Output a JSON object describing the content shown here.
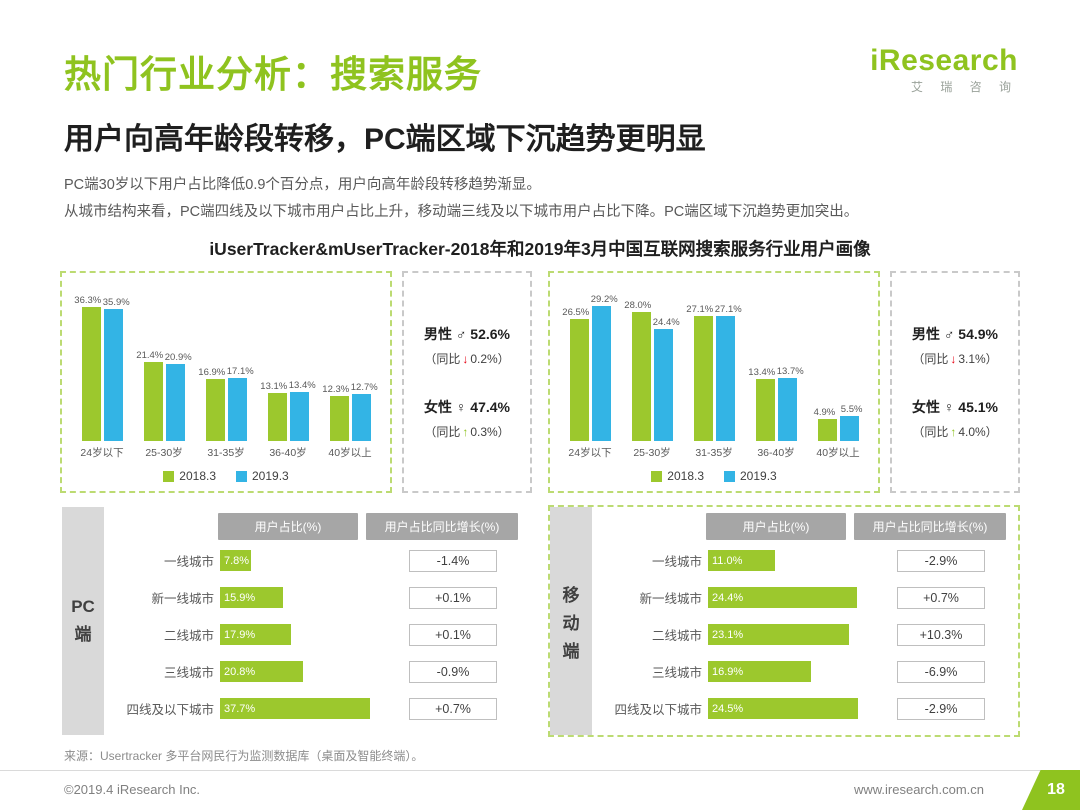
{
  "header": {
    "title": "热门行业分析：搜索服务",
    "subtitle": "用户向高年龄段转移，PC端区域下沉趋势更明显",
    "paragraph1": "PC端30岁以下用户占比降低0.9个百分点，用户向高年龄段转移趋势渐显。",
    "paragraph2": "从城市结构来看，PC端四线及以下城市用户占比上升，移动端三线及以下城市用户占比下降。PC端区域下沉趋势更加突出。",
    "logo_text": "iResearch",
    "logo_sub": "艾 瑞 咨 询"
  },
  "chart_title": "iUserTracker&mUserTracker-2018年和2019年3月中国互联网搜索服务行业用户画像",
  "colors": {
    "brand_green": "#8FC31F",
    "bar_green": "#9CC82D",
    "bar_blue": "#33B4E5",
    "down_red": "#E60012",
    "header_gray": "#A6A6A6",
    "side_label_gray": "#D9D9D9"
  },
  "chart_data": [
    {
      "type": "bar",
      "title": "PC端用户年龄结构",
      "categories": [
        "24岁以下",
        "25-30岁",
        "31-35岁",
        "36-40岁",
        "40岁以上"
      ],
      "series": [
        {
          "name": "2018.3",
          "color": "#9CC82D",
          "values": [
            36.3,
            21.4,
            16.9,
            13.1,
            12.3
          ]
        },
        {
          "name": "2019.3",
          "color": "#33B4E5",
          "values": [
            35.9,
            20.9,
            17.1,
            13.4,
            12.7
          ]
        }
      ],
      "unit": "%",
      "ylim": [
        0,
        40
      ],
      "grid": false,
      "legend_position": "bottom"
    },
    {
      "type": "bar",
      "title": "移动端用户年龄结构",
      "categories": [
        "24岁以下",
        "25-30岁",
        "31-35岁",
        "36-40岁",
        "40岁以上"
      ],
      "series": [
        {
          "name": "2018.3",
          "color": "#9CC82D",
          "values": [
            26.5,
            28.0,
            27.1,
            13.4,
            4.9
          ]
        },
        {
          "name": "2019.3",
          "color": "#33B4E5",
          "values": [
            29.2,
            24.4,
            27.1,
            13.7,
            5.5
          ]
        }
      ],
      "unit": "%",
      "ylim": [
        0,
        32
      ],
      "grid": false,
      "legend_position": "bottom"
    },
    {
      "type": "table",
      "title": "PC端城市结构",
      "columns": [
        "用户占比(%)",
        "用户占比同比增长(%)"
      ],
      "rows": [
        {
          "city": "一线城市",
          "share": 7.8,
          "share_text": "7.8%",
          "growth": "-1.4%"
        },
        {
          "city": "新一线城市",
          "share": 15.9,
          "share_text": "15.9%",
          "growth": "+0.1%"
        },
        {
          "city": "二线城市",
          "share": 17.9,
          "share_text": "17.9%",
          "growth": "+0.1%"
        },
        {
          "city": "三线城市",
          "share": 20.8,
          "share_text": "20.8%",
          "growth": "-0.9%"
        },
        {
          "city": "四线及以下城市",
          "share": 37.7,
          "share_text": "37.7%",
          "growth": "+0.7%"
        }
      ]
    },
    {
      "type": "table",
      "title": "移动端城市结构",
      "columns": [
        "用户占比(%)",
        "用户占比同比增长(%)"
      ],
      "rows": [
        {
          "city": "一线城市",
          "share": 11.0,
          "share_text": "11.0%",
          "growth": "-2.9%"
        },
        {
          "city": "新一线城市",
          "share": 24.4,
          "share_text": "24.4%",
          "growth": "+0.7%"
        },
        {
          "city": "二线城市",
          "share": 23.1,
          "share_text": "23.1%",
          "growth": "+10.3%"
        },
        {
          "city": "三线城市",
          "share": 16.9,
          "share_text": "16.9%",
          "growth": "-6.9%"
        },
        {
          "city": "四线及以下城市",
          "share": 24.5,
          "share_text": "24.5%",
          "growth": "-2.9%"
        }
      ]
    }
  ],
  "panels": [
    {
      "name": "PC端",
      "side_label_chars": [
        "PC",
        "端"
      ],
      "stats": {
        "male_label": "男性 ♂",
        "male_value": "52.6%",
        "male_yoy_pre": "（同比",
        "male_arrow": "↓",
        "male_yoy_post": "0.2%）",
        "male_dir": "down",
        "female_label": "女性 ♀",
        "female_value": "47.4%",
        "female_yoy_pre": "（同比",
        "female_arrow": "↑",
        "female_yoy_post": "0.3%）",
        "female_dir": "up"
      }
    },
    {
      "name": "移动端",
      "side_label_chars": [
        "移",
        "动",
        "端"
      ],
      "stats": {
        "male_label": "男性 ♂",
        "male_value": "54.9%",
        "male_yoy_pre": "（同比",
        "male_arrow": "↓",
        "male_yoy_post": "3.1%）",
        "male_dir": "down",
        "female_label": "女性 ♀",
        "female_value": "45.1%",
        "female_yoy_pre": "（同比",
        "female_arrow": "↑",
        "female_yoy_post": "4.0%）",
        "female_dir": "up"
      }
    }
  ],
  "footer": {
    "source": "来源：Usertracker 多平台网民行为监测数据库（桌面及智能终端）。",
    "copyright": "©2019.4 iResearch Inc.",
    "website": "www.iresearch.com.cn",
    "page_number": "18"
  }
}
